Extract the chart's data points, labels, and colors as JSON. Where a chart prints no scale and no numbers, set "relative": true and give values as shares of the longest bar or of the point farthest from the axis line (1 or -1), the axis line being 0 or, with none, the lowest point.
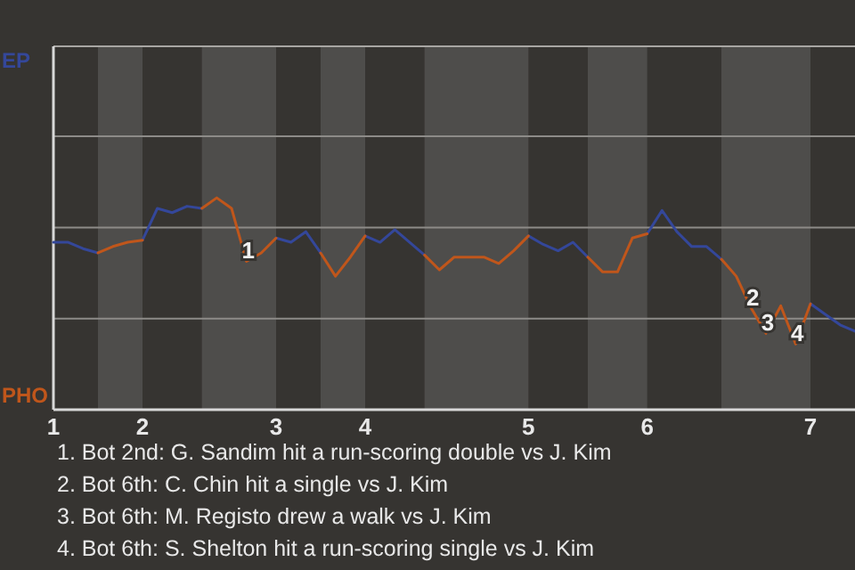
{
  "chart_data": {
    "type": "line",
    "relative": true,
    "marker": "none",
    "line_style": "solid",
    "ref_lines": [
      {
        "axis": "y",
        "value": 0.43,
        "color": "#8d8b88"
      },
      {
        "axis": "y",
        "value": 0.86,
        "color": "#8d8b88"
      },
      {
        "axis": "y",
        "value": 1.29,
        "color": "#8d8b88"
      }
    ],
    "categories": [
      "1",
      null,
      null,
      null,
      null,
      null,
      "2",
      null,
      null,
      null,
      null,
      null,
      null,
      null,
      null,
      "3",
      null,
      null,
      null,
      null,
      null,
      "4",
      null,
      null,
      null,
      null,
      null,
      null,
      null,
      null,
      null,
      null,
      "5",
      null,
      null,
      null,
      null,
      null,
      null,
      null,
      "6",
      null,
      null,
      null,
      null,
      null,
      null,
      null,
      null,
      null,
      null,
      "7",
      null,
      null,
      null
    ],
    "series": [
      {
        "name": "EP",
        "color": "#34479a",
        "values": [
          0.79,
          0.79,
          0.76,
          0.74,
          null,
          null,
          0.8,
          0.95,
          0.93,
          0.96,
          0.95,
          null,
          null,
          null,
          null,
          0.81,
          0.79,
          0.84,
          0.74,
          null,
          null,
          0.82,
          0.79,
          0.85,
          0.79,
          0.73,
          null,
          null,
          null,
          null,
          null,
          null,
          0.82,
          0.78,
          0.75,
          0.79,
          0.72,
          null,
          null,
          null,
          0.83,
          0.94,
          0.84,
          0.77,
          0.77,
          0.71,
          null,
          null,
          null,
          null,
          null,
          0.5,
          0.45,
          0.4,
          0.37
        ]
      },
      {
        "name": "PHO",
        "color": "#c0561b",
        "values": [
          null,
          null,
          null,
          0.74,
          0.77,
          0.79,
          0.8,
          null,
          null,
          null,
          0.95,
          1,
          0.95,
          0.7,
          0.74,
          0.81,
          null,
          null,
          0.74,
          0.63,
          0.72,
          0.82,
          null,
          null,
          null,
          0.73,
          0.66,
          0.72,
          0.72,
          0.72,
          0.69,
          0.75,
          0.82,
          null,
          null,
          null,
          0.72,
          0.65,
          0.65,
          0.81,
          0.83,
          null,
          null,
          null,
          null,
          0.71,
          0.63,
          0.48,
          0.36,
          0.49,
          0.31,
          0.5,
          null,
          null,
          null
        ]
      }
    ],
    "annotations": [
      {
        "text": "1",
        "y": 0.7
      },
      {
        "text": "2",
        "y": 0.48
      },
      {
        "text": "3",
        "y": 0.36
      },
      {
        "text": "4",
        "y": 0.31
      },
      "1. Bot 2nd: G. Sandim hit a run-scoring double vs J. Kim",
      "2. Bot 6th: C. Chin hit a single vs J. Kim",
      "3. Bot 6th: M. Registo drew a walk vs J. Kim",
      "4. Bot 6th: S. Shelton hit a run-scoring single vs J. Kim"
    ]
  }
}
